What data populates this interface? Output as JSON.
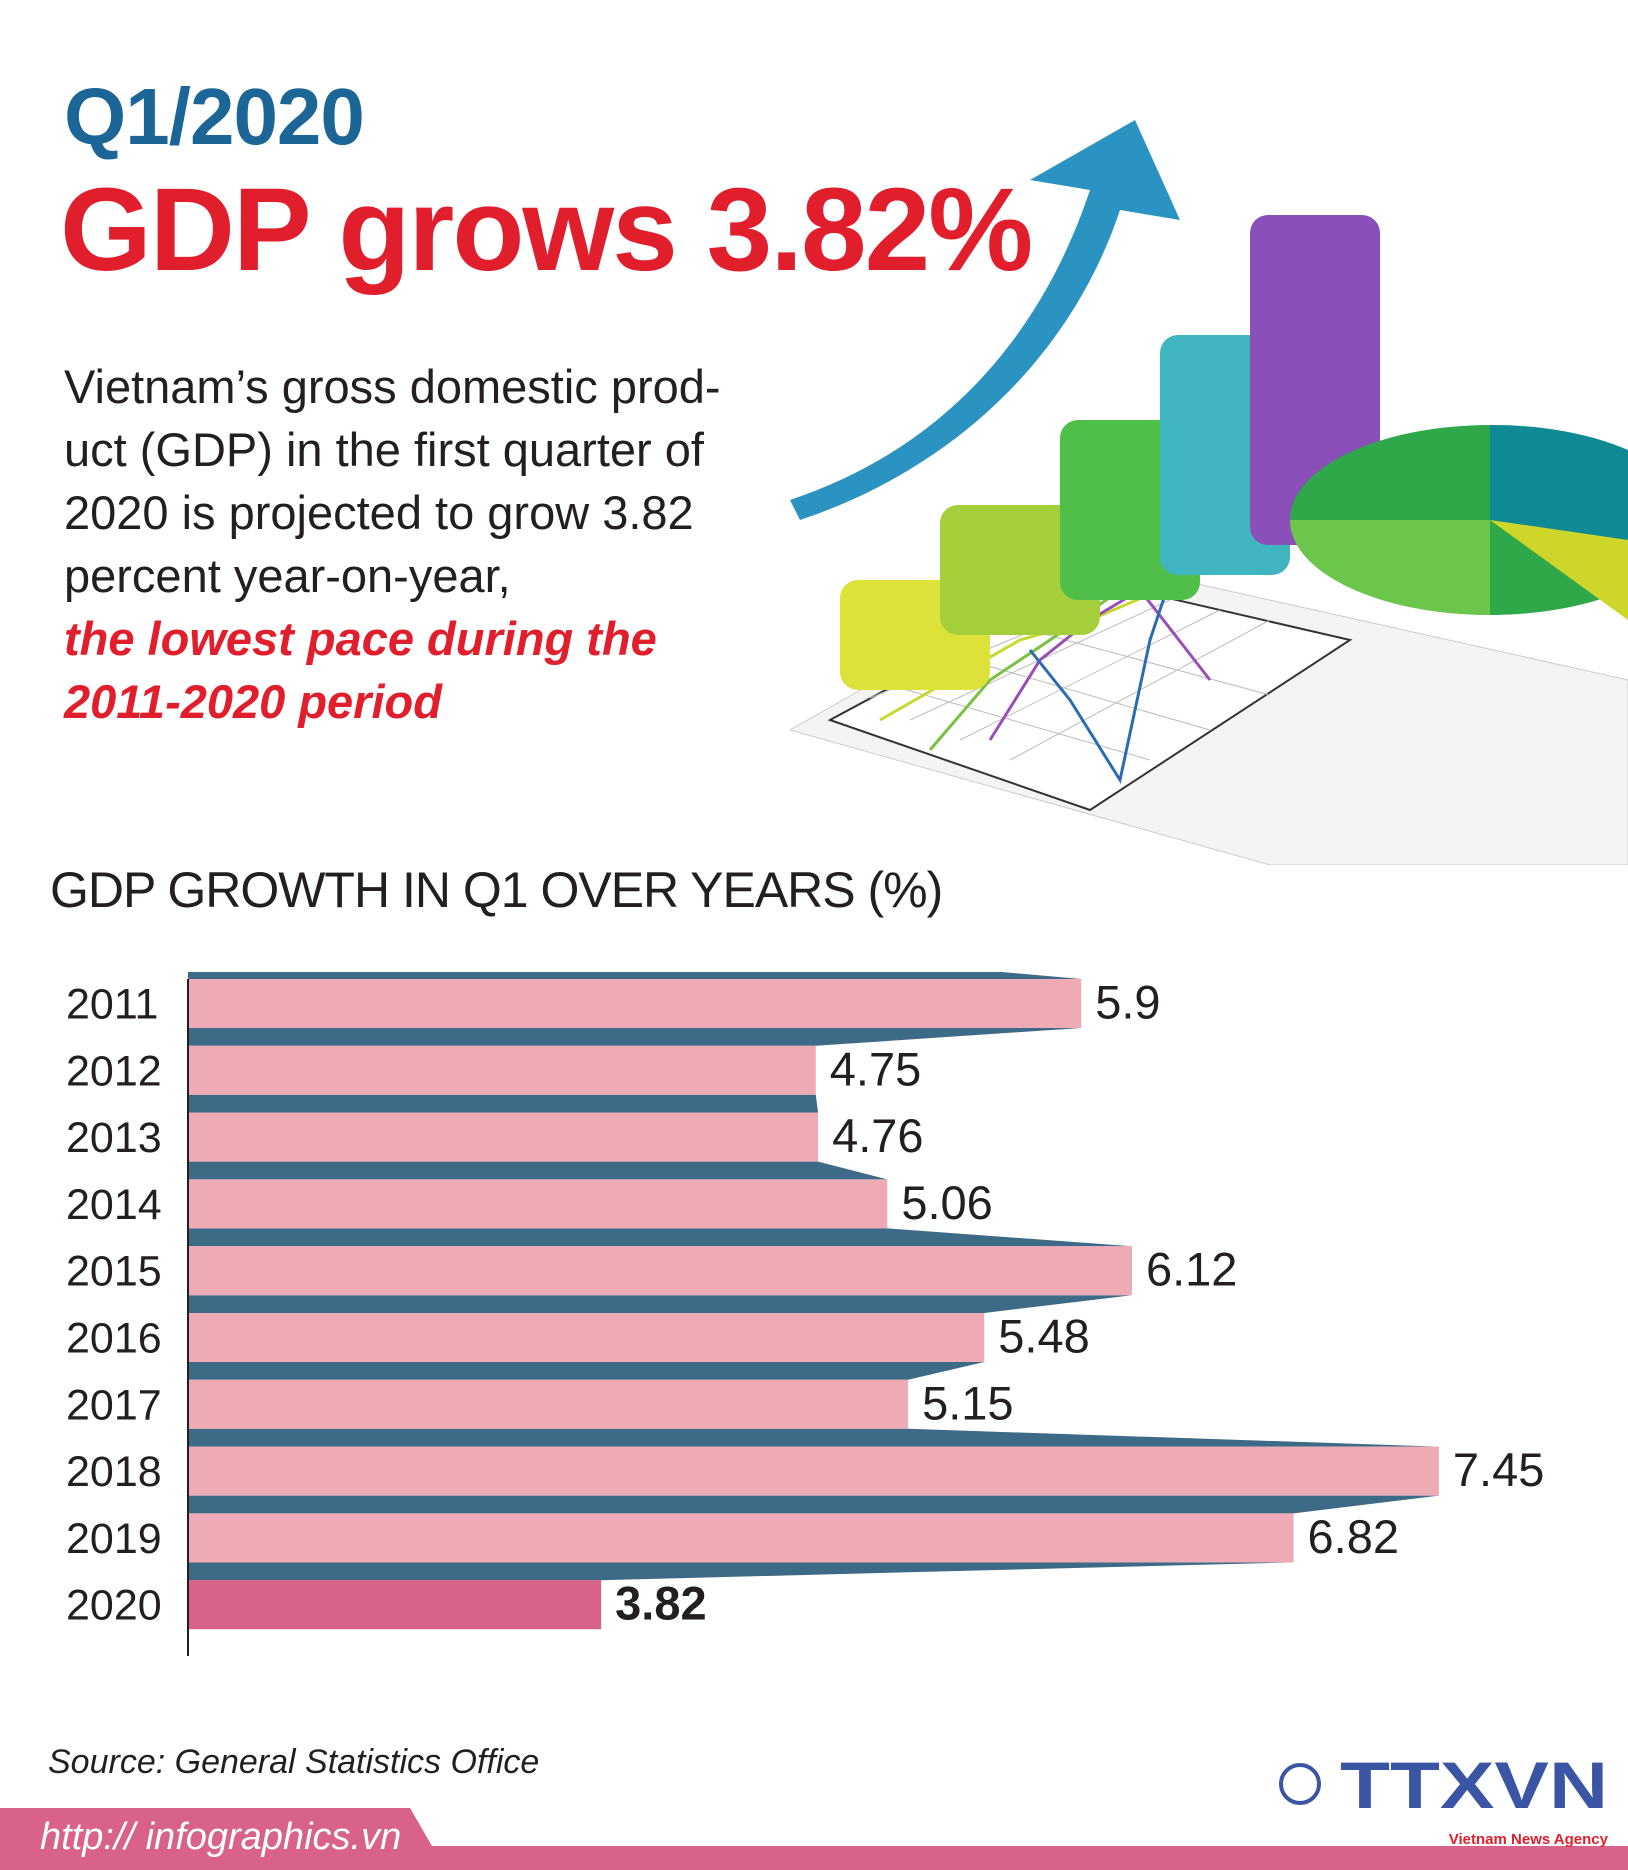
{
  "header": {
    "kicker": "Q1/2020",
    "headline": "GDP grows 3.82%",
    "intro": "Vietnam’s gross domestic prod- uct (GDP) in the first quarter of 2020 is projected to grow 3.82 percent year-on-year,",
    "intro_highlight": "the lowest pace during the 2011-2020 period"
  },
  "colors": {
    "kicker": "#1B6597",
    "headline": "#E11E2B",
    "bar": "#EEAAB5",
    "bar_highlight": "#D9628A",
    "connector": "#3D6A87",
    "footer": "#D9628A",
    "logo": "#3A55A4"
  },
  "chart_data": {
    "type": "bar",
    "orientation": "horizontal",
    "title": "GDP GROWTH IN Q1 OVER YEARS (%)",
    "categories": [
      "2011",
      "2012",
      "2013",
      "2014",
      "2015",
      "2016",
      "2017",
      "2018",
      "2019",
      "2020"
    ],
    "values": [
      5.9,
      4.75,
      4.76,
      5.06,
      6.12,
      5.48,
      5.15,
      7.45,
      6.82,
      3.82
    ],
    "labels": [
      "5.9",
      "4.75",
      "4.76",
      "5.06",
      "6.12",
      "5.48",
      "5.15",
      "7.45",
      "6.82",
      "3.82"
    ],
    "highlight": "2020",
    "xlim": [
      2.03,
      7.45
    ],
    "grid": false,
    "legend": "none"
  },
  "footer": {
    "source": "Source: General Statistics Office",
    "url": "http:// infographics.vn",
    "copyright": "©",
    "logo_text": "TTXVN",
    "logo_subtitle": "Vietnam News Agency"
  },
  "illustration": {
    "icon": "3d-bar-chart-with-arrow-and-pie-icon"
  }
}
